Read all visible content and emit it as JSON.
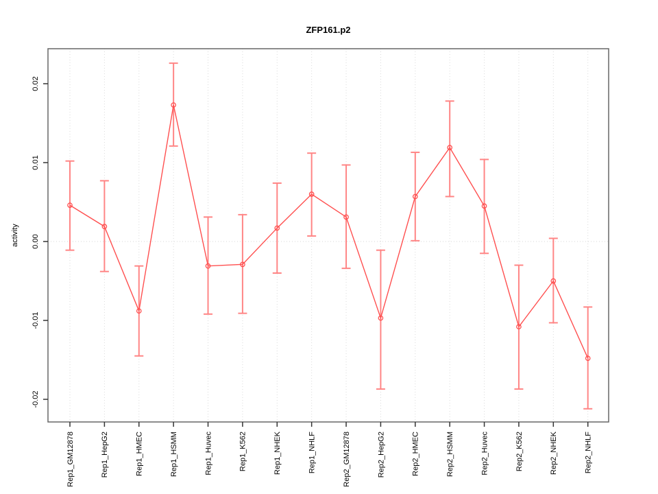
{
  "title": "ZFP161.p2",
  "chart_data": {
    "type": "line",
    "title": "ZFP161.p2",
    "xlabel": "",
    "ylabel": "activity",
    "ylim": [
      -0.0229,
      0.0244
    ],
    "yticks": [
      0.02,
      0.01,
      0.0,
      -0.01,
      -0.02
    ],
    "ytick_labels": [
      "0.02",
      "0.01",
      "0.00",
      "-0.01",
      "-0.02"
    ],
    "grid": "vertical dotted gridline at each category; horizontal dotted line at y=0 only",
    "legend": "none",
    "marker": "open-circle",
    "categories": [
      "Rep1_GM12878",
      "Rep1_HepG2",
      "Rep1_HMEC",
      "Rep1_HSMM",
      "Rep1_Huvec",
      "Rep1_K562",
      "Rep1_NHEK",
      "Rep1_NHLF",
      "Rep2_GM12878",
      "Rep2_HepG2",
      "Rep2_HMEC",
      "Rep2_HSMM",
      "Rep2_Huvec",
      "Rep2_K562",
      "Rep2_NHEK",
      "Rep2_NHLF"
    ],
    "series": [
      {
        "name": "activity",
        "values": [
          0.0046,
          0.0019,
          -0.0088,
          0.0173,
          -0.0031,
          -0.0029,
          0.0017,
          0.006,
          0.0031,
          -0.0097,
          0.0057,
          0.0119,
          0.0045,
          -0.0108,
          -0.005,
          -0.0148
        ],
        "ci_lower": [
          -0.0011,
          -0.0038,
          -0.0145,
          0.0121,
          -0.0092,
          -0.0091,
          -0.004,
          0.0007,
          -0.0034,
          -0.0187,
          0.0001,
          0.0057,
          -0.0015,
          -0.0187,
          -0.0103,
          -0.0212
        ],
        "ci_upper": [
          0.0102,
          0.0077,
          -0.0031,
          0.0226,
          0.0031,
          0.0034,
          0.0074,
          0.0112,
          0.0097,
          -0.0011,
          0.0113,
          0.0178,
          0.0104,
          -0.003,
          0.0004,
          -0.0083
        ]
      }
    ],
    "colors": {
      "line": "#ff4f4f",
      "marker": "#ff4f4f",
      "error_bar": "#ff8585",
      "gridline": "#dadada",
      "zero_line": "#d6d6d6",
      "plot_border": "#666666",
      "tick": "#333333",
      "text": "#000000"
    }
  }
}
